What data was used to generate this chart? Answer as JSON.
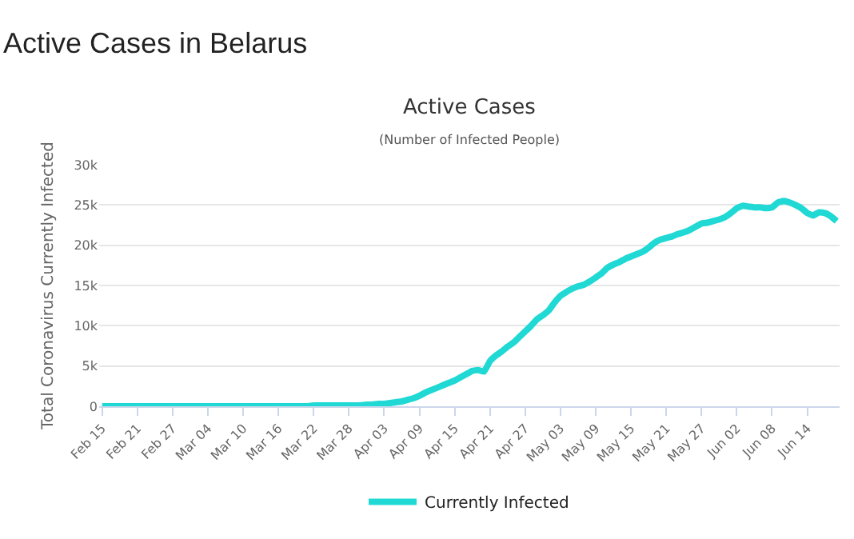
{
  "chart_data": {
    "type": "line",
    "title": "Active Cases in Belarus",
    "subtitle": "Active Cases",
    "annotations": [
      "(Number of Infected People)"
    ],
    "ylabel": "Total Coronavirus Currently Infected",
    "categories": [
      "Feb 15",
      null,
      null,
      null,
      null,
      null,
      "Feb 21",
      null,
      null,
      null,
      null,
      null,
      "Feb 27",
      null,
      null,
      null,
      null,
      null,
      "Mar 04",
      null,
      null,
      null,
      null,
      null,
      "Mar 10",
      null,
      null,
      null,
      null,
      null,
      "Mar 16",
      null,
      null,
      null,
      null,
      null,
      "Mar 22",
      null,
      null,
      null,
      null,
      null,
      "Mar 28",
      null,
      null,
      null,
      null,
      null,
      "Apr 03",
      null,
      null,
      null,
      null,
      null,
      "Apr 09",
      null,
      null,
      null,
      null,
      null,
      "Apr 15",
      null,
      null,
      null,
      null,
      null,
      "Apr 21",
      null,
      null,
      null,
      null,
      null,
      "Apr 27",
      null,
      null,
      null,
      null,
      null,
      "May 03",
      null,
      null,
      null,
      null,
      null,
      "May 09",
      null,
      null,
      null,
      null,
      null,
      "May 15",
      null,
      null,
      null,
      null,
      null,
      "May 21",
      null,
      null,
      null,
      null,
      null,
      "May 27",
      null,
      null,
      null,
      null,
      null,
      "Jun 02",
      null,
      null,
      null,
      null,
      null,
      "Jun 08",
      null,
      null,
      null,
      null,
      null,
      "Jun 14",
      null,
      null,
      null,
      null,
      null
    ],
    "series": [
      {
        "name": "Currently Infected",
        "color": "#20d9d4",
        "values": [
          0,
          0,
          0,
          0,
          0,
          0,
          0,
          0,
          0,
          0,
          0,
          0,
          0,
          0,
          0,
          0,
          0,
          0,
          0,
          0,
          0,
          0,
          0,
          0,
          0,
          0,
          0,
          0,
          0,
          0,
          0,
          0,
          0,
          0,
          0,
          0,
          100,
          100,
          100,
          100,
          100,
          100,
          100,
          100,
          100,
          200,
          200,
          300,
          300,
          400,
          500,
          600,
          800,
          1000,
          1300,
          1700,
          2000,
          2300,
          2600,
          2900,
          3200,
          3600,
          4000,
          4400,
          4500,
          4300,
          5600,
          6300,
          6800,
          7400,
          7900,
          8600,
          9300,
          10000,
          10800,
          11300,
          11900,
          12900,
          13700,
          14200,
          14600,
          14900,
          15100,
          15500,
          16000,
          16500,
          17200,
          17600,
          17900,
          18300,
          18600,
          18900,
          19200,
          19700,
          20300,
          20700,
          20900,
          21100,
          21400,
          21600,
          21900,
          22300,
          22700,
          22800,
          23000,
          23200,
          23500,
          24000,
          24600,
          24900,
          24800,
          24700,
          24700,
          24600,
          24700,
          25300,
          25500,
          25300,
          25000,
          24600,
          24000,
          23700,
          24100,
          24000,
          23600,
          23000
        ]
      }
    ],
    "ylim": [
      0,
      30000
    ],
    "yticks": [
      {
        "value": 0,
        "label": "0"
      },
      {
        "value": 5000,
        "label": "5k"
      },
      {
        "value": 10000,
        "label": "10k"
      },
      {
        "value": 15000,
        "label": "15k"
      },
      {
        "value": 20000,
        "label": "20k"
      },
      {
        "value": 25000,
        "label": "25k"
      },
      {
        "value": 30000,
        "label": "30k"
      }
    ],
    "grid": "y",
    "legend": "bottom",
    "marker": "none",
    "line_style": "solid"
  }
}
